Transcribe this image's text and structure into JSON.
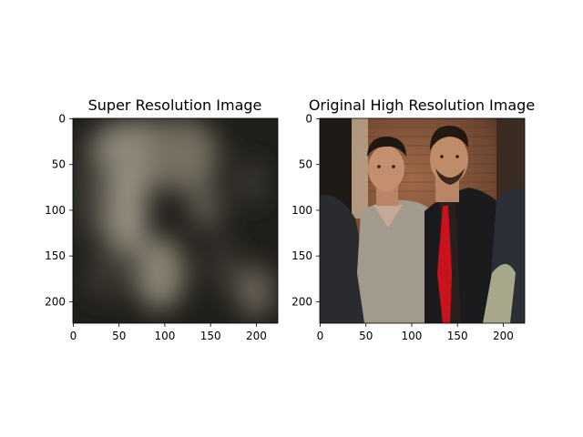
{
  "chart_data": [
    {
      "type": "image",
      "title": "Super Resolution Image",
      "x_ticks": [
        0,
        50,
        100,
        150,
        200
      ],
      "y_ticks": [
        0,
        50,
        100,
        150,
        200
      ],
      "xlim": [
        -0.5,
        223.5
      ],
      "ylim": [
        223.5,
        -0.5
      ],
      "content": "blurry low-detail grayish-beige reconstruction"
    },
    {
      "type": "image",
      "title": "Original High Resolution Image",
      "x_ticks": [
        0,
        50,
        100,
        150,
        200
      ],
      "y_ticks": [
        0,
        50,
        100,
        150,
        200
      ],
      "xlim": [
        -0.5,
        223.5
      ],
      "ylim": [
        223.5,
        -0.5
      ],
      "content": "photo of two men posing in front of a brick wall"
    }
  ],
  "colors": {
    "dark_bg": "#1c1a17",
    "haze": "#8c8677",
    "brick": "#8a5a3e",
    "shirt_grey": "#a39a8c",
    "suit_black": "#1a1a1c",
    "tie_red": "#c8121c",
    "skin": "#c48f6e"
  }
}
